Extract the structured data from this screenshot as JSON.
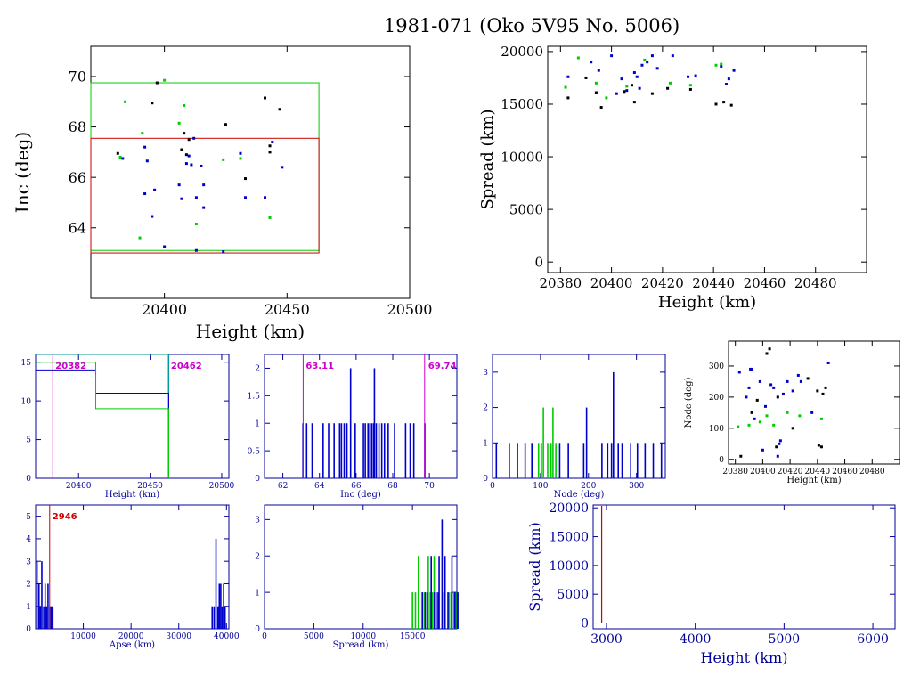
{
  "title": "1981-071 (Oko 5V95 No. 5006)",
  "colors": {
    "axis": "#000000",
    "blue": "#0000cc",
    "green": "#00cc00",
    "red": "#cc0000",
    "magenta": "#cc00cc",
    "navy": "#000099"
  },
  "chart_data": [
    {
      "id": "p1",
      "type": "scatter",
      "xlabel": "Height (km)",
      "ylabel": "Inc (deg)",
      "xlim": [
        20370,
        20500
      ],
      "ylim": [
        61.2,
        71.2
      ],
      "xticks": [
        20400,
        20450,
        20500
      ],
      "yticks": [
        64,
        66,
        68,
        70
      ],
      "rects": [
        {
          "color": "green",
          "x": [
            20370,
            20463
          ],
          "y": [
            63.1,
            69.75
          ]
        },
        {
          "color": "red",
          "x": [
            20370,
            20463
          ],
          "y": [
            63.0,
            67.55
          ]
        }
      ],
      "points": {
        "black": [
          [
            20381,
            66.95
          ],
          [
            20395,
            68.95
          ],
          [
            20397,
            69.75
          ],
          [
            20408,
            67.75
          ],
          [
            20410,
            67.5
          ],
          [
            20407,
            67.1
          ],
          [
            20409,
            66.9
          ],
          [
            20441,
            69.15
          ],
          [
            20447,
            68.7
          ],
          [
            20443,
            67.25
          ],
          [
            20443,
            67.0
          ],
          [
            20433,
            65.95
          ],
          [
            20425,
            68.1
          ]
        ],
        "blue": [
          [
            20383,
            66.75
          ],
          [
            20392,
            67.2
          ],
          [
            20393,
            66.65
          ],
          [
            20396,
            65.5
          ],
          [
            20395,
            64.45
          ],
          [
            20400,
            63.25
          ],
          [
            20406,
            65.7
          ],
          [
            20407,
            65.15
          ],
          [
            20409,
            66.55
          ],
          [
            20411,
            66.5
          ],
          [
            20412,
            67.55
          ],
          [
            20413,
            65.2
          ],
          [
            20415,
            66.45
          ],
          [
            20416,
            65.7
          ],
          [
            20413,
            63.1
          ],
          [
            20416,
            64.8
          ],
          [
            20424,
            63.05
          ],
          [
            20431,
            66.95
          ],
          [
            20433,
            65.2
          ],
          [
            20441,
            65.2
          ],
          [
            20444,
            67.4
          ],
          [
            20448,
            66.4
          ],
          [
            20392,
            65.35
          ],
          [
            20410,
            66.85
          ]
        ],
        "green": [
          [
            20382,
            66.8
          ],
          [
            20384,
            69.0
          ],
          [
            20391,
            67.75
          ],
          [
            20400,
            69.85
          ],
          [
            20406,
            68.15
          ],
          [
            20408,
            68.85
          ],
          [
            20413,
            64.15
          ],
          [
            20424,
            66.7
          ],
          [
            20431,
            66.75
          ],
          [
            20443,
            64.4
          ],
          [
            20390,
            63.6
          ]
        ]
      }
    },
    {
      "id": "p2",
      "type": "scatter",
      "xlabel": "Height (km)",
      "ylabel": "Spread (km)",
      "xlim": [
        20375,
        20500
      ],
      "ylim": [
        -1000,
        20500
      ],
      "xticks": [
        20380,
        20400,
        20420,
        20440,
        20460,
        20480
      ],
      "yticks": [
        0,
        5000,
        10000,
        15000,
        20000
      ],
      "points": {
        "black": [
          [
            20383,
            15600
          ],
          [
            20390,
            17500
          ],
          [
            20394,
            16100
          ],
          [
            20396,
            14700
          ],
          [
            20405,
            16200
          ],
          [
            20408,
            16800
          ],
          [
            20409,
            15200
          ],
          [
            20416,
            16000
          ],
          [
            20422,
            16500
          ],
          [
            20431,
            16400
          ],
          [
            20441,
            15000
          ],
          [
            20444,
            15200
          ],
          [
            20447,
            14900
          ]
        ],
        "blue": [
          [
            20383,
            17600
          ],
          [
            20392,
            19000
          ],
          [
            20395,
            18200
          ],
          [
            20400,
            19600
          ],
          [
            20402,
            16000
          ],
          [
            20404,
            17400
          ],
          [
            20406,
            16300
          ],
          [
            20409,
            18000
          ],
          [
            20410,
            17600
          ],
          [
            20412,
            18700
          ],
          [
            20414,
            19000
          ],
          [
            20416,
            19600
          ],
          [
            20418,
            18400
          ],
          [
            20424,
            19600
          ],
          [
            20430,
            17600
          ],
          [
            20433,
            17700
          ],
          [
            20443,
            18600
          ],
          [
            20446,
            17400
          ],
          [
            20448,
            18200
          ],
          [
            20445,
            16900
          ],
          [
            20411,
            16500
          ]
        ],
        "green": [
          [
            20382,
            16600
          ],
          [
            20387,
            19400
          ],
          [
            20394,
            17000
          ],
          [
            20398,
            15600
          ],
          [
            20406,
            16700
          ],
          [
            20413,
            19200
          ],
          [
            20423,
            17000
          ],
          [
            20431,
            16800
          ],
          [
            20441,
            18700
          ],
          [
            20443,
            18800
          ]
        ]
      }
    },
    {
      "id": "p3",
      "type": "step",
      "xlabel": "Height (km)",
      "xlim": [
        20370,
        20505
      ],
      "ylim": [
        0,
        16
      ],
      "xticks": [
        20400,
        20450,
        20500
      ],
      "yticks": [
        0,
        5,
        10,
        15
      ],
      "marks": [
        {
          "x": 20382,
          "label": "20382"
        },
        {
          "x": 20462,
          "label": "20462"
        }
      ],
      "series": [
        {
          "color": "teal",
          "edges": [
            20370,
            20412,
            20463
          ],
          "values": [
            16,
            16
          ]
        },
        {
          "color": "blue",
          "edges": [
            20370,
            20412,
            20463
          ],
          "values": [
            14,
            11
          ]
        },
        {
          "color": "green",
          "edges": [
            20370,
            20412,
            20463
          ],
          "values": [
            15,
            9
          ]
        }
      ]
    },
    {
      "id": "p4",
      "type": "histogram",
      "xlabel": "Inc (deg)",
      "xlim": [
        61,
        71.5
      ],
      "ylim": [
        0,
        2.25
      ],
      "xticks": [
        62,
        64,
        66,
        68,
        70
      ],
      "yticks": [
        0,
        0.5,
        1,
        1.5,
        2
      ],
      "marks": [
        {
          "x": 63.11,
          "label": "63.11"
        },
        {
          "x": 69.74,
          "label": "69.74"
        }
      ],
      "bars": {
        "blue": [
          [
            63.1,
            1
          ],
          [
            63.3,
            1
          ],
          [
            63.6,
            1
          ],
          [
            64.2,
            1
          ],
          [
            64.5,
            1
          ],
          [
            64.8,
            1
          ],
          [
            65.1,
            1
          ],
          [
            65.2,
            1
          ],
          [
            65.35,
            1
          ],
          [
            65.5,
            1
          ],
          [
            65.7,
            2
          ],
          [
            65.95,
            1
          ],
          [
            66.4,
            1
          ],
          [
            66.5,
            1
          ],
          [
            66.65,
            1
          ],
          [
            66.75,
            1
          ],
          [
            66.85,
            1
          ],
          [
            66.95,
            1
          ],
          [
            67.0,
            2
          ],
          [
            67.1,
            1
          ],
          [
            67.25,
            1
          ],
          [
            67.4,
            1
          ],
          [
            67.55,
            1
          ],
          [
            67.75,
            1
          ],
          [
            68.1,
            1
          ],
          [
            68.7,
            1
          ],
          [
            68.95,
            1
          ],
          [
            69.15,
            1
          ],
          [
            69.75,
            1
          ]
        ]
      }
    },
    {
      "id": "p5",
      "type": "histogram",
      "xlabel": "Node (deg)",
      "xlim": [
        0,
        360
      ],
      "ylim": [
        0,
        3.5
      ],
      "xticks": [
        0,
        100,
        200,
        300
      ],
      "yticks": [
        0,
        1,
        2,
        3
      ],
      "bars": {
        "blue": [
          [
            8,
            1
          ],
          [
            35,
            1
          ],
          [
            52,
            1
          ],
          [
            68,
            1
          ],
          [
            82,
            1
          ],
          [
            140,
            1
          ],
          [
            158,
            1
          ],
          [
            190,
            1
          ],
          [
            196,
            2
          ],
          [
            228,
            1
          ],
          [
            240,
            1
          ],
          [
            248,
            1
          ],
          [
            252,
            3
          ],
          [
            262,
            1
          ],
          [
            270,
            1
          ],
          [
            288,
            1
          ],
          [
            302,
            1
          ],
          [
            318,
            1
          ],
          [
            335,
            1
          ],
          [
            352,
            1
          ]
        ],
        "green": [
          [
            96,
            1
          ],
          [
            102,
            1
          ],
          [
            106,
            2
          ],
          [
            115,
            1
          ],
          [
            122,
            1
          ],
          [
            126,
            2
          ],
          [
            132,
            1
          ]
        ]
      }
    },
    {
      "id": "p6",
      "type": "scatter",
      "xlabel": "Height (km)",
      "ylabel": "Node (deg)",
      "xlim": [
        20375,
        20500
      ],
      "ylim": [
        -15,
        380
      ],
      "xticks": [
        20380,
        20400,
        20420,
        20440,
        20460,
        20480
      ],
      "yticks": [
        0,
        100,
        200,
        300
      ],
      "points": {
        "black": [
          [
            20384,
            10
          ],
          [
            20392,
            150
          ],
          [
            20396,
            190
          ],
          [
            20403,
            340
          ],
          [
            20405,
            355
          ],
          [
            20410,
            40
          ],
          [
            20411,
            200
          ],
          [
            20422,
            100
          ],
          [
            20433,
            260
          ],
          [
            20440,
            220
          ],
          [
            20444,
            210
          ],
          [
            20446,
            230
          ],
          [
            20441,
            45
          ],
          [
            20443,
            40
          ]
        ],
        "blue": [
          [
            20383,
            280
          ],
          [
            20388,
            200
          ],
          [
            20390,
            230
          ],
          [
            20392,
            290
          ],
          [
            20394,
            130
          ],
          [
            20398,
            250
          ],
          [
            20400,
            30
          ],
          [
            20402,
            170
          ],
          [
            20406,
            240
          ],
          [
            20408,
            230
          ],
          [
            20411,
            10
          ],
          [
            20412,
            50
          ],
          [
            20413,
            60
          ],
          [
            20415,
            210
          ],
          [
            20418,
            250
          ],
          [
            20422,
            220
          ],
          [
            20426,
            270
          ],
          [
            20428,
            250
          ],
          [
            20436,
            150
          ],
          [
            20448,
            310
          ],
          [
            20391,
            290
          ]
        ],
        "green": [
          [
            20382,
            105
          ],
          [
            20390,
            110
          ],
          [
            20398,
            120
          ],
          [
            20403,
            140
          ],
          [
            20408,
            110
          ],
          [
            20418,
            150
          ],
          [
            20427,
            140
          ],
          [
            20443,
            130
          ]
        ]
      }
    },
    {
      "id": "p7",
      "type": "histogram",
      "xlabel": "Apse (km)",
      "xlim": [
        0,
        40500
      ],
      "ylim": [
        0,
        5.5
      ],
      "xticks": [
        10000,
        20000,
        30000,
        40000
      ],
      "yticks": [
        0,
        1,
        2,
        3,
        4,
        5
      ],
      "marks": [
        {
          "x": 2946,
          "label": "2946"
        }
      ],
      "bars": {
        "blue": [
          [
            300,
            3
          ],
          [
            700,
            2
          ],
          [
            1000,
            1
          ],
          [
            1300,
            3
          ],
          [
            1700,
            1
          ],
          [
            2000,
            2
          ],
          [
            2300,
            1
          ],
          [
            2600,
            2
          ],
          [
            3000,
            1
          ],
          [
            3300,
            1
          ],
          [
            3600,
            1
          ],
          [
            37000,
            1
          ],
          [
            37400,
            1
          ],
          [
            37800,
            4
          ],
          [
            38200,
            1
          ],
          [
            38500,
            2
          ],
          [
            38800,
            2
          ],
          [
            39100,
            1
          ],
          [
            39400,
            2
          ],
          [
            39700,
            1
          ]
        ]
      }
    },
    {
      "id": "p8",
      "type": "histogram",
      "xlabel": "Spread (km)",
      "xlim": [
        0,
        19500
      ],
      "ylim": [
        0,
        3.4
      ],
      "xticks": [
        0,
        5000,
        10000,
        15000
      ],
      "yticks": [
        0,
        1,
        2,
        3
      ],
      "bars": {
        "green": [
          [
            15000,
            1
          ],
          [
            15300,
            1
          ],
          [
            15600,
            2
          ],
          [
            16000,
            1
          ],
          [
            16200,
            1
          ],
          [
            16600,
            2
          ],
          [
            16800,
            1
          ],
          [
            17000,
            1
          ],
          [
            17200,
            2
          ],
          [
            18700,
            1
          ],
          [
            18900,
            1
          ],
          [
            19200,
            1
          ],
          [
            19400,
            1
          ]
        ],
        "blue": [
          [
            16000,
            1
          ],
          [
            16300,
            1
          ],
          [
            16500,
            1
          ],
          [
            16900,
            2
          ],
          [
            17200,
            1
          ],
          [
            17400,
            1
          ],
          [
            17600,
            1
          ],
          [
            17700,
            2
          ],
          [
            18000,
            3
          ],
          [
            18200,
            1
          ],
          [
            18300,
            2
          ],
          [
            18600,
            1
          ],
          [
            19000,
            2
          ],
          [
            19300,
            1
          ],
          [
            19600,
            1
          ]
        ]
      }
    },
    {
      "id": "p9",
      "type": "line",
      "xlabel": "Height (km)",
      "ylabel": "Spread (km)",
      "xlim": [
        2850,
        6250
      ],
      "ylim": [
        -1000,
        20500
      ],
      "xticks": [
        3000,
        4000,
        5000,
        6000
      ],
      "yticks": [
        0,
        5000,
        10000,
        15000,
        20000
      ],
      "vline": {
        "x": 2946,
        "y": [
          0,
          20500
        ]
      }
    }
  ]
}
